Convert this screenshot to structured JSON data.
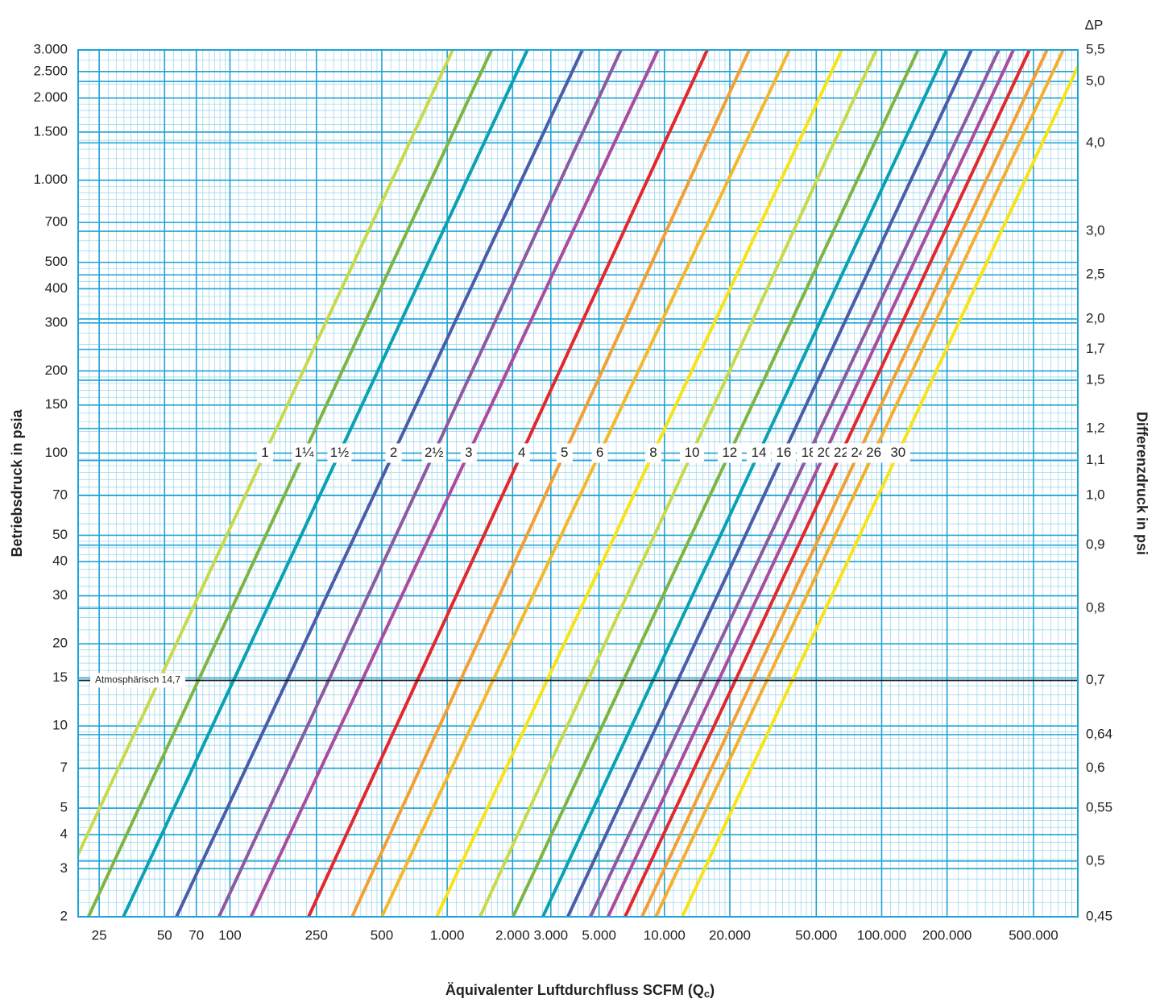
{
  "chart_data": {
    "type": "line",
    "x_log": true,
    "y_log": true,
    "grid": true,
    "minor_grid": true,
    "y_label": "Betriebsdruck in psia",
    "y2_title": "ΔP",
    "y2_label": "Differenzdruck in psi",
    "x_label": {
      "text": "Äquivalenter Luftdurchfluss SCFM (Q",
      "subscript": "c",
      "suffix": ")"
    },
    "xlim": [
      20,
      800000
    ],
    "ylim": [
      2,
      3000
    ],
    "xticks": [
      25,
      50,
      70,
      100,
      250,
      500,
      {
        "value": 1000,
        "label": "1.000"
      },
      {
        "value": 2000,
        "label": "2.000"
      },
      {
        "value": 3000,
        "label": "3.000"
      },
      {
        "value": 5000,
        "label": "5.000"
      },
      {
        "value": 10000,
        "label": "10.000"
      },
      {
        "value": 20000,
        "label": "20.000"
      },
      {
        "value": 50000,
        "label": "50.000"
      },
      {
        "value": 100000,
        "label": "100.000"
      },
      {
        "value": 200000,
        "label": "200.000"
      },
      {
        "value": 500000,
        "label": "500.000"
      }
    ],
    "yticks": [
      2,
      3,
      4,
      5,
      7,
      10,
      15,
      20,
      30,
      40,
      50,
      70,
      100,
      150,
      200,
      300,
      400,
      500,
      700,
      {
        "value": 1000,
        "label": "1.000"
      },
      {
        "value": 1500,
        "label": "1.500"
      },
      {
        "value": 2000,
        "label": "2.000"
      },
      {
        "value": 2500,
        "label": "2.500"
      },
      {
        "value": 3000,
        "label": "3.000"
      }
    ],
    "y2ticks": [
      {
        "value": 5.5,
        "label": "5,5",
        "at_psia": 3000
      },
      {
        "value": 5.0,
        "label": "5,0",
        "at_psia": 2300
      },
      {
        "value": 4.0,
        "label": "4,0",
        "at_psia": 1370
      },
      {
        "value": 3.0,
        "label": "3,0",
        "at_psia": 650
      },
      {
        "value": 2.5,
        "label": "2,5",
        "at_psia": 450
      },
      {
        "value": 2.0,
        "label": "2,0",
        "at_psia": 310
      },
      {
        "value": 1.7,
        "label": "1,7",
        "at_psia": 240
      },
      {
        "value": 1.5,
        "label": "1,5",
        "at_psia": 185
      },
      {
        "value": 1.2,
        "label": "1,2",
        "at_psia": 123
      },
      {
        "value": 1.1,
        "label": "1,1",
        "at_psia": 94
      },
      {
        "value": 1.0,
        "label": "1,0",
        "at_psia": 70
      },
      {
        "value": 0.9,
        "label": "0,9",
        "at_psia": 46
      },
      {
        "value": 0.8,
        "label": "0,8",
        "at_psia": 27
      },
      {
        "value": 0.7,
        "label": "0,7",
        "at_psia": 14.7
      },
      {
        "value": 0.64,
        "label": "0,64",
        "at_psia": 9.3
      },
      {
        "value": 0.6,
        "label": "0,6",
        "at_psia": 7.0
      },
      {
        "value": 0.55,
        "label": "0,55",
        "at_psia": 5.0
      },
      {
        "value": 0.5,
        "label": "0,5",
        "at_psia": 3.2
      },
      {
        "value": 0.45,
        "label": "0,45",
        "at_psia": 2
      }
    ],
    "annotation": {
      "text": "Atmosphärisch 14,7",
      "value": 14.7
    },
    "label_at_psia": 100,
    "series": [
      {
        "name": "1",
        "color": "#c9d94c",
        "x": [
          14.7,
          1060
        ],
        "values": [
          2,
          3000
        ]
      },
      {
        "name": "1¼",
        "color": "#7db544",
        "x": [
          22.3,
          1600
        ],
        "values": [
          2,
          3000
        ]
      },
      {
        "name": "1½",
        "color": "#0aa1b4",
        "x": [
          32.3,
          2340
        ],
        "values": [
          2,
          3000
        ]
      },
      {
        "name": "2",
        "color": "#4a5da8",
        "x": [
          56.7,
          4190
        ],
        "values": [
          2,
          3000
        ]
      },
      {
        "name": "2½",
        "color": "#8c5aa0",
        "x": [
          89,
          6310
        ],
        "values": [
          2,
          3000
        ]
      },
      {
        "name": "3",
        "color": "#a94c9f",
        "x": [
          125,
          9340
        ],
        "values": [
          2,
          3000
        ]
      },
      {
        "name": "4",
        "color": "#e3282d",
        "x": [
          230,
          15740
        ],
        "values": [
          2,
          3000
        ]
      },
      {
        "name": "5",
        "color": "#f1a035",
        "x": [
          365,
          24560
        ],
        "values": [
          2,
          3000
        ]
      },
      {
        "name": "6",
        "color": "#f4b92a",
        "x": [
          500,
          37600
        ],
        "values": [
          2,
          3000
        ]
      },
      {
        "name": "8",
        "color": "#f8e31a",
        "x": [
          894,
          65500
        ],
        "values": [
          2,
          3000
        ]
      },
      {
        "name": "10",
        "color": "#c9d94c",
        "x": [
          1416,
          94500
        ],
        "values": [
          2,
          3000
        ]
      },
      {
        "name": "12",
        "color": "#7db544",
        "x": [
          2010,
          147000
        ],
        "values": [
          2,
          3000
        ]
      },
      {
        "name": "14",
        "color": "#0aa1b4",
        "x": [
          2756,
          199000
        ],
        "values": [
          2,
          3000
        ]
      },
      {
        "name": "16",
        "color": "#4a5da8",
        "x": [
          3590,
          259000
        ],
        "values": [
          2,
          3000
        ]
      },
      {
        "name": "18",
        "color": "#8c5aa0",
        "x": [
          4560,
          346000
        ],
        "values": [
          2,
          3000
        ]
      },
      {
        "name": "20",
        "color": "#a94c9f",
        "x": [
          5500,
          404000
        ],
        "values": [
          2,
          3000
        ]
      },
      {
        "name": "22",
        "color": "#e3282d",
        "x": [
          6590,
          479000
        ],
        "values": [
          2,
          3000
        ]
      },
      {
        "name": "24",
        "color": "#f1a035",
        "x": [
          7880,
          577000
        ],
        "values": [
          2,
          3000
        ]
      },
      {
        "name": "26",
        "color": "#f3b02e",
        "x": [
          9120,
          685000
        ],
        "values": [
          2,
          3000
        ]
      },
      {
        "name": "30",
        "color": "#f8e31a",
        "x": [
          12080,
          869000
        ],
        "values": [
          2,
          3000
        ]
      }
    ]
  }
}
